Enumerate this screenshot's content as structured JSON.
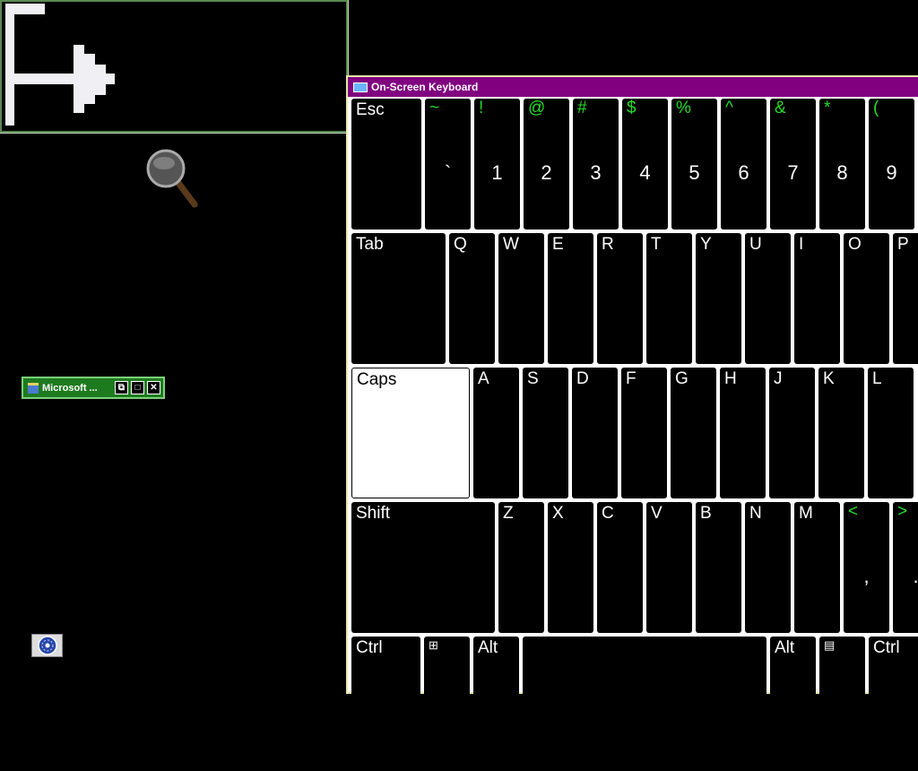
{
  "magnifier": {
    "window": "magnifier-view"
  },
  "minimized_window": {
    "title": "Microsoft ...",
    "buttons": [
      "restore",
      "maximize",
      "close"
    ]
  },
  "keyboard": {
    "title": "On-Screen Keyboard",
    "rows": [
      [
        {
          "label": "Esc",
          "w": 78
        },
        {
          "shift": "~",
          "base": "`"
        },
        {
          "shift": "!",
          "base": "1"
        },
        {
          "shift": "@",
          "base": "2"
        },
        {
          "shift": "#",
          "base": "3"
        },
        {
          "shift": "$",
          "base": "4"
        },
        {
          "shift": "%",
          "base": "5"
        },
        {
          "shift": "^",
          "base": "6"
        },
        {
          "shift": "&",
          "base": "7"
        },
        {
          "shift": "*",
          "base": "8"
        },
        {
          "shift": "(",
          "base": "9"
        }
      ],
      [
        {
          "label": "Tab",
          "w": 105
        },
        {
          "label": "Q"
        },
        {
          "label": "W"
        },
        {
          "label": "E"
        },
        {
          "label": "R"
        },
        {
          "label": "T"
        },
        {
          "label": "Y"
        },
        {
          "label": "U"
        },
        {
          "label": "I"
        },
        {
          "label": "O"
        },
        {
          "label": "P"
        }
      ],
      [
        {
          "label": "Caps",
          "w": 132,
          "active": true
        },
        {
          "label": "A"
        },
        {
          "label": "S"
        },
        {
          "label": "D"
        },
        {
          "label": "F"
        },
        {
          "label": "G"
        },
        {
          "label": "H"
        },
        {
          "label": "J"
        },
        {
          "label": "K"
        },
        {
          "label": "L"
        }
      ],
      [
        {
          "label": "Shift",
          "w": 160
        },
        {
          "label": "Z"
        },
        {
          "label": "X"
        },
        {
          "label": "C"
        },
        {
          "label": "V"
        },
        {
          "label": "B"
        },
        {
          "label": "N"
        },
        {
          "label": "M"
        },
        {
          "shift": "<",
          "base": ","
        },
        {
          "shift": ">",
          "base": "."
        }
      ],
      [
        {
          "label": "Ctrl",
          "w": 77
        },
        {
          "icon": "windows-logo-icon",
          "label": "⊞"
        },
        {
          "label": "Alt"
        },
        {
          "label": "",
          "w": 272
        },
        {
          "label": "Alt"
        },
        {
          "icon": "menu-icon",
          "label": "▤"
        },
        {
          "label": "Ctrl",
          "w": 60
        }
      ]
    ]
  },
  "colors": {
    "title_bar": "#800080",
    "shift_char": "#22dd22",
    "minimized_bar": "#1e7a1e"
  }
}
